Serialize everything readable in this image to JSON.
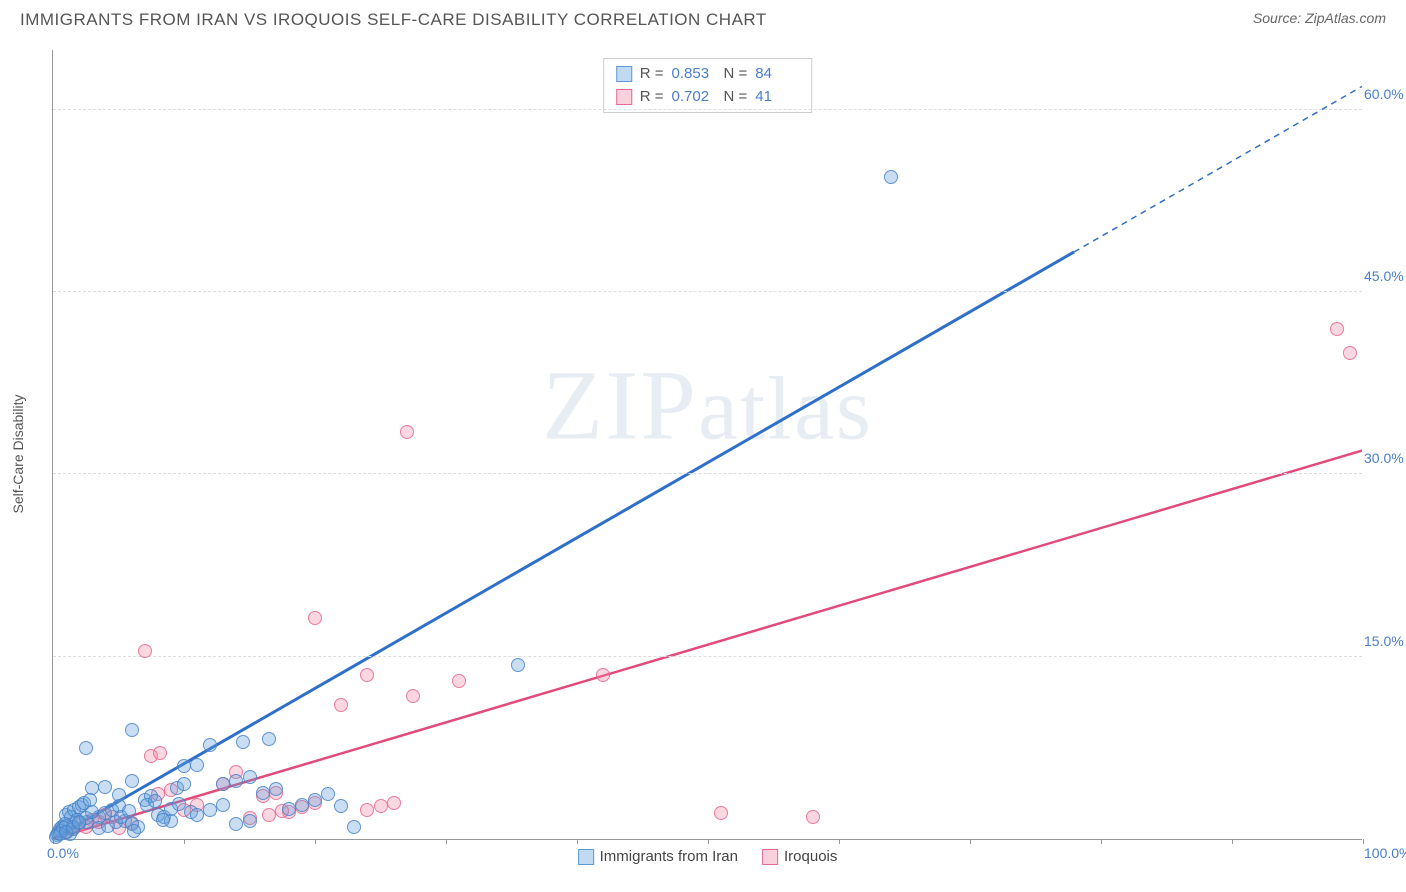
{
  "title": "IMMIGRANTS FROM IRAN VS IROQUOIS SELF-CARE DISABILITY CORRELATION CHART",
  "source": "Source: ZipAtlas.com",
  "y_axis_label": "Self-Care Disability",
  "watermark": "ZIPatlas",
  "chart": {
    "type": "scatter",
    "xlim": [
      0,
      100
    ],
    "ylim": [
      0,
      65
    ],
    "y_ticks": [
      0,
      15,
      30,
      45,
      60
    ],
    "y_tick_labels": [
      "0.0%",
      "15.0%",
      "30.0%",
      "45.0%",
      "60.0%"
    ],
    "x_tick_positions": [
      0,
      10,
      20,
      30,
      40,
      50,
      60,
      70,
      80,
      90,
      100
    ],
    "x_origin_label": "0.0%",
    "x_end_label": "100.0%",
    "grid_color": "#dddddd",
    "axis_color": "#999999",
    "tick_label_color": "#4a7ec9",
    "background_color": "#ffffff"
  },
  "stats": [
    {
      "swatch": "blue",
      "r_label": "R =",
      "r": "0.853",
      "n_label": "N =",
      "n": "84"
    },
    {
      "swatch": "pink",
      "r_label": "R =",
      "r": "0.702",
      "n_label": "N =",
      "n": "41"
    }
  ],
  "legend": {
    "series1": "Immigrants from Iran",
    "series2": "Iroquois"
  },
  "series": {
    "blue": {
      "color_fill": "rgba(100,160,220,0.35)",
      "color_stroke": "#5a9bd5",
      "trend": {
        "x1": 0,
        "y1": 0,
        "x2": 100,
        "y2": 62,
        "solid_until_x": 78
      },
      "points": [
        [
          64,
          54.5
        ],
        [
          35.5,
          14.3
        ],
        [
          14.5,
          8
        ],
        [
          16.5,
          8.2
        ],
        [
          12,
          7.7
        ],
        [
          2.5,
          7.5
        ],
        [
          6,
          9
        ],
        [
          21,
          3.7
        ],
        [
          22,
          2.7
        ],
        [
          23,
          1.0
        ],
        [
          10,
          6.0
        ],
        [
          11,
          6.1
        ],
        [
          3,
          4.2
        ],
        [
          4,
          4.3
        ],
        [
          5,
          3.6
        ],
        [
          6,
          4.8
        ],
        [
          1,
          2.0
        ],
        [
          1.2,
          2.2
        ],
        [
          1.4,
          1.8
        ],
        [
          1.6,
          2.4
        ],
        [
          1.8,
          1.6
        ],
        [
          2,
          2.6
        ],
        [
          2.2,
          2.8
        ],
        [
          2.4,
          3.0
        ],
        [
          2.6,
          1.4
        ],
        [
          2.8,
          3.2
        ],
        [
          0.5,
          0.8
        ],
        [
          0.7,
          1.0
        ],
        [
          0.9,
          1.2
        ],
        [
          1.1,
          0.6
        ],
        [
          1.3,
          0.4
        ],
        [
          3.5,
          1.8
        ],
        [
          4.0,
          2.1
        ],
        [
          4.5,
          2.4
        ],
        [
          5,
          2.7
        ],
        [
          5.5,
          1.5
        ],
        [
          6,
          1.2
        ],
        [
          6.5,
          1.0
        ],
        [
          7,
          3.2
        ],
        [
          7.5,
          3.5
        ],
        [
          8,
          2.0
        ],
        [
          8.5,
          1.8
        ],
        [
          9,
          1.5
        ],
        [
          9.5,
          4.2
        ],
        [
          10,
          4.5
        ],
        [
          10.5,
          2.2
        ],
        [
          0.3,
          0.3
        ],
        [
          0.4,
          0.5
        ],
        [
          0.6,
          0.7
        ],
        [
          0.8,
          0.9
        ],
        [
          1.0,
          1.1
        ],
        [
          1.5,
          0.8
        ],
        [
          2.0,
          1.3
        ],
        [
          2.5,
          1.7
        ],
        [
          3.0,
          2.2
        ],
        [
          3.5,
          0.9
        ],
        [
          4.2,
          1.1
        ],
        [
          4.8,
          1.4
        ],
        [
          5.2,
          1.8
        ],
        [
          5.8,
          2.3
        ],
        [
          6.2,
          0.7
        ],
        [
          0.2,
          0.2
        ],
        [
          0.5,
          0.4
        ],
        [
          1.0,
          0.6
        ],
        [
          1.5,
          1.0
        ],
        [
          2.0,
          1.4
        ],
        [
          7.2,
          2.8
        ],
        [
          7.8,
          3.1
        ],
        [
          8.4,
          1.6
        ],
        [
          9.0,
          2.5
        ],
        [
          9.6,
          2.9
        ],
        [
          11,
          2.0
        ],
        [
          12,
          2.4
        ],
        [
          13,
          2.8
        ],
        [
          14,
          1.2
        ],
        [
          15,
          1.5
        ],
        [
          16,
          3.8
        ],
        [
          17,
          4.1
        ],
        [
          18,
          2.5
        ],
        [
          19,
          2.8
        ],
        [
          20,
          3.2
        ],
        [
          13,
          4.5
        ],
        [
          14,
          4.8
        ],
        [
          15,
          5.1
        ]
      ]
    },
    "pink": {
      "color_fill": "rgba(240,140,170,0.35)",
      "color_stroke": "#e06a93",
      "trend": {
        "x1": 0,
        "y1": 0,
        "x2": 100,
        "y2": 32
      },
      "points": [
        [
          98,
          42
        ],
        [
          99,
          40
        ],
        [
          27,
          33.5
        ],
        [
          7,
          15.5
        ],
        [
          20,
          18.2
        ],
        [
          27.5,
          11.8
        ],
        [
          22,
          11
        ],
        [
          24,
          13.5
        ],
        [
          31,
          13
        ],
        [
          42,
          13.5
        ],
        [
          51,
          2.1
        ],
        [
          58,
          1.8
        ],
        [
          13,
          4.5
        ],
        [
          14,
          5.5
        ],
        [
          10,
          2.4
        ],
        [
          11,
          2.8
        ],
        [
          8,
          3.7
        ],
        [
          9,
          4.0
        ],
        [
          7.5,
          6.8
        ],
        [
          8.2,
          7.1
        ],
        [
          2,
          1.2
        ],
        [
          3,
          1.6
        ],
        [
          4,
          2.0
        ],
        [
          5,
          0.9
        ],
        [
          6,
          1.3
        ],
        [
          1,
          0.6
        ],
        [
          1.5,
          0.8
        ],
        [
          2.5,
          1.0
        ],
        [
          3.5,
          1.4
        ],
        [
          4.5,
          1.8
        ],
        [
          16,
          3.5
        ],
        [
          17,
          3.8
        ],
        [
          18,
          2.2
        ],
        [
          19,
          2.6
        ],
        [
          20,
          3.0
        ],
        [
          24,
          2.4
        ],
        [
          25,
          2.7
        ],
        [
          26,
          3.0
        ],
        [
          15,
          1.7
        ],
        [
          16.5,
          2.0
        ],
        [
          17.5,
          2.3
        ]
      ]
    }
  }
}
